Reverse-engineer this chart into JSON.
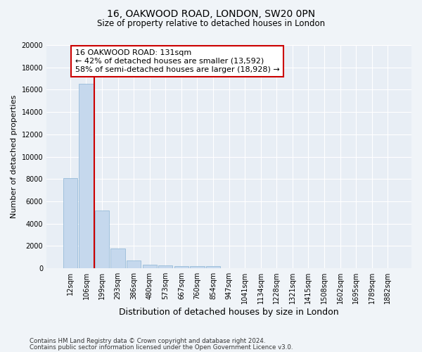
{
  "title1": "16, OAKWOOD ROAD, LONDON, SW20 0PN",
  "title2": "Size of property relative to detached houses in London",
  "xlabel": "Distribution of detached houses by size in London",
  "ylabel": "Number of detached properties",
  "categories": [
    "12sqm",
    "106sqm",
    "199sqm",
    "293sqm",
    "386sqm",
    "480sqm",
    "573sqm",
    "667sqm",
    "760sqm",
    "854sqm",
    "947sqm",
    "1041sqm",
    "1134sqm",
    "1228sqm",
    "1321sqm",
    "1415sqm",
    "1508sqm",
    "1602sqm",
    "1695sqm",
    "1789sqm",
    "1882sqm"
  ],
  "bar_values": [
    8100,
    16500,
    5200,
    1750,
    700,
    320,
    250,
    170,
    210,
    210,
    0,
    0,
    0,
    0,
    0,
    0,
    0,
    0,
    0,
    0,
    0
  ],
  "bar_color": "#c5d8ed",
  "bar_edge_color": "#8ab4d4",
  "vline_x": 1.5,
  "annotation_text": "16 OAKWOOD ROAD: 131sqm\n← 42% of detached houses are smaller (13,592)\n58% of semi-detached houses are larger (18,928) →",
  "annotation_box_color": "#ffffff",
  "annotation_box_edge": "#cc0000",
  "vline_color": "#cc0000",
  "ylim": [
    0,
    20000
  ],
  "yticks": [
    0,
    2000,
    4000,
    6000,
    8000,
    10000,
    12000,
    14000,
    16000,
    18000,
    20000
  ],
  "footer1": "Contains HM Land Registry data © Crown copyright and database right 2024.",
  "footer2": "Contains public sector information licensed under the Open Government Licence v3.0.",
  "bg_color": "#f0f4f8",
  "plot_bg_color": "#e8eef5"
}
